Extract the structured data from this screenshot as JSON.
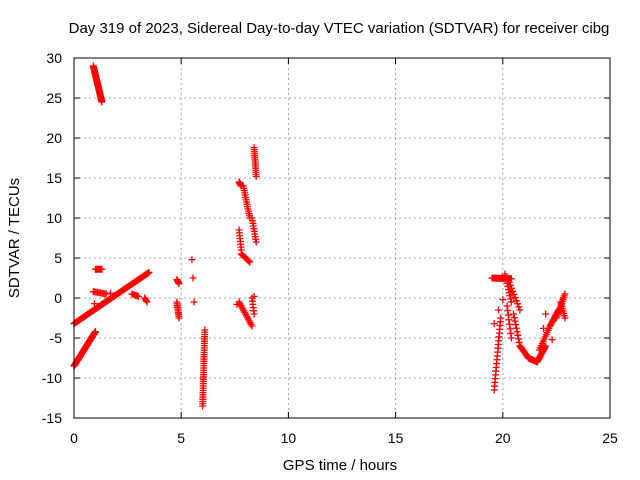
{
  "chart_data": {
    "type": "scatter",
    "title": "Day 319 of 2023, Sidereal Day-to-day VTEC variation (SDTVAR) for receiver cibg",
    "xlabel": "GPS time / hours",
    "ylabel": "SDTVAR / TECUs",
    "xlim": [
      0,
      25
    ],
    "ylim": [
      -15,
      30
    ],
    "xticks": [
      0,
      5,
      10,
      15,
      20,
      25
    ],
    "yticks": [
      -15,
      -10,
      -5,
      0,
      5,
      10,
      15,
      20,
      25,
      30
    ],
    "grid": true,
    "marker": "+",
    "color": "#ff0000",
    "series": [
      {
        "name": "SDTVAR",
        "segments": [
          {
            "from": [
              0.9,
              29.0
            ],
            "to": [
              1.3,
              24.5
            ],
            "n": 40
          },
          {
            "from": [
              0.0,
              -3.2
            ],
            "to": [
              3.5,
              3.2
            ],
            "n": 90
          },
          {
            "from": [
              0.0,
              -8.5
            ],
            "to": [
              1.0,
              -4.2
            ],
            "n": 70
          },
          {
            "from": [
              1.0,
              3.6
            ],
            "to": [
              1.3,
              3.6
            ],
            "n": 8
          },
          {
            "from": [
              0.9,
              0.8
            ],
            "to": [
              1.5,
              0.5
            ],
            "n": 10
          },
          {
            "from": [
              2.7,
              0.5
            ],
            "to": [
              3.0,
              0.2
            ],
            "n": 6
          },
          {
            "from": [
              3.3,
              0.0
            ],
            "to": [
              3.4,
              -0.5
            ],
            "n": 4
          },
          {
            "from": [
              4.8,
              2.3
            ],
            "to": [
              4.9,
              1.8
            ],
            "n": 5
          },
          {
            "from": [
              4.8,
              -0.5
            ],
            "to": [
              4.9,
              -2.5
            ],
            "n": 10
          },
          {
            "from": [
              6.1,
              -4.0
            ],
            "to": [
              6.0,
              -13.5
            ],
            "n": 35
          },
          {
            "from": [
              7.7,
              14.5
            ],
            "to": [
              7.8,
              14.0
            ],
            "n": 6
          },
          {
            "from": [
              7.9,
              14.0
            ],
            "to": [
              8.2,
              10.0
            ],
            "n": 15
          },
          {
            "from": [
              8.4,
              18.8
            ],
            "to": [
              8.5,
              15.2
            ],
            "n": 15
          },
          {
            "from": [
              8.3,
              10.0
            ],
            "to": [
              8.5,
              7.0
            ],
            "n": 10
          },
          {
            "from": [
              7.7,
              8.5
            ],
            "to": [
              7.8,
              6.0
            ],
            "n": 8
          },
          {
            "from": [
              7.8,
              5.5
            ],
            "to": [
              8.2,
              4.5
            ],
            "n": 10
          },
          {
            "from": [
              7.7,
              -0.5
            ],
            "to": [
              8.3,
              -3.5
            ],
            "n": 15
          },
          {
            "from": [
              8.3,
              0.0
            ],
            "to": [
              8.4,
              -2.0
            ],
            "n": 6
          },
          {
            "from": [
              19.5,
              2.5
            ],
            "to": [
              20.4,
              2.4
            ],
            "n": 20
          },
          {
            "from": [
              19.9,
              -2.5
            ],
            "to": [
              19.6,
              -11.5
            ],
            "n": 20
          },
          {
            "from": [
              20.2,
              -1.0
            ],
            "to": [
              20.4,
              -5.0
            ],
            "n": 8
          },
          {
            "from": [
              20.1,
              3.0
            ],
            "to": [
              20.4,
              -0.5
            ],
            "n": 10
          },
          {
            "from": [
              20.3,
              2.0
            ],
            "to": [
              20.8,
              -1.5
            ],
            "n": 10
          },
          {
            "from": [
              20.5,
              -2.0
            ],
            "to": [
              20.8,
              -6.0
            ],
            "n": 10
          },
          {
            "from": [
              20.8,
              -6.0
            ],
            "to": [
              21.2,
              -7.5
            ],
            "n": 12
          },
          {
            "from": [
              21.2,
              -7.5
            ],
            "to": [
              21.6,
              -8.0
            ],
            "n": 12
          },
          {
            "from": [
              21.6,
              -8.0
            ],
            "to": [
              22.0,
              -6.0
            ],
            "n": 14
          },
          {
            "from": [
              21.7,
              -6.5
            ],
            "to": [
              22.2,
              -3.5
            ],
            "n": 12
          },
          {
            "from": [
              22.2,
              -3.5
            ],
            "to": [
              22.6,
              -1.5
            ],
            "n": 12
          },
          {
            "from": [
              22.5,
              -2.5
            ],
            "to": [
              22.9,
              0.5
            ],
            "n": 14
          },
          {
            "from": [
              22.7,
              -0.5
            ],
            "to": [
              22.9,
              -2.5
            ],
            "n": 8
          }
        ],
        "points": [
          [
            0.95,
            -0.7
          ],
          [
            1.7,
            0.6
          ],
          [
            5.5,
            4.8
          ],
          [
            5.55,
            2.5
          ],
          [
            5.6,
            -0.5
          ],
          [
            7.6,
            -0.8
          ],
          [
            8.4,
            0.2
          ],
          [
            21.9,
            -3.8
          ],
          [
            22.3,
            -5.2
          ],
          [
            22.0,
            -2.0
          ],
          [
            19.8,
            -1.5
          ],
          [
            19.6,
            -3.2
          ],
          [
            20.0,
            -0.2
          ]
        ]
      }
    ]
  }
}
